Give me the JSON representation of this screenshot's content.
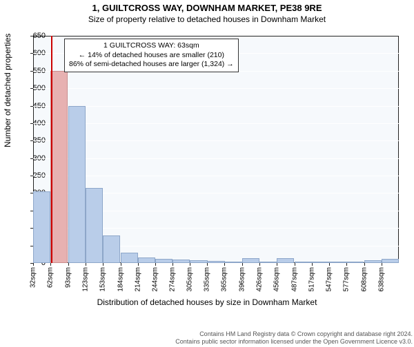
{
  "title": "1, GUILTCROSS WAY, DOWNHAM MARKET, PE38 9RE",
  "subtitle": "Size of property relative to detached houses in Downham Market",
  "yaxis": {
    "label": "Number of detached properties",
    "min": 0,
    "max": 650,
    "step": 50
  },
  "xaxis": {
    "label": "Distribution of detached houses by size in Downham Market",
    "ticks": [
      "32sqm",
      "62sqm",
      "93sqm",
      "123sqm",
      "153sqm",
      "184sqm",
      "214sqm",
      "244sqm",
      "274sqm",
      "305sqm",
      "335sqm",
      "365sqm",
      "396sqm",
      "426sqm",
      "456sqm",
      "487sqm",
      "517sqm",
      "547sqm",
      "577sqm",
      "608sqm",
      "638sqm"
    ]
  },
  "bars": {
    "bin_width": 30.3,
    "edges": [
      32,
      62,
      93,
      123,
      153,
      184,
      214,
      244,
      274,
      305,
      335,
      365,
      396,
      426,
      456,
      487,
      517,
      547,
      577,
      608,
      638
    ],
    "values": [
      205,
      550,
      450,
      215,
      78,
      30,
      15,
      12,
      10,
      8,
      6,
      4,
      14,
      3,
      14,
      2,
      2,
      1,
      1,
      8,
      12
    ],
    "color": "#b9cde9",
    "border": "#8da6c9"
  },
  "highlight": {
    "x_value": 63,
    "line_color": "#cc0000",
    "box": {
      "line1": "1 GUILTCROSS WAY: 63sqm",
      "line2": "← 14% of detached houses are smaller (210)",
      "line3": "86% of semi-detached houses are larger (1,324) →"
    }
  },
  "plot": {
    "bg": "#f6f9fc",
    "grid": "#ffffff",
    "border": "#222222"
  },
  "footer": {
    "line1": "Contains HM Land Registry data © Crown copyright and database right 2024.",
    "line2": "Contains public sector information licensed under the Open Government Licence v3.0."
  }
}
